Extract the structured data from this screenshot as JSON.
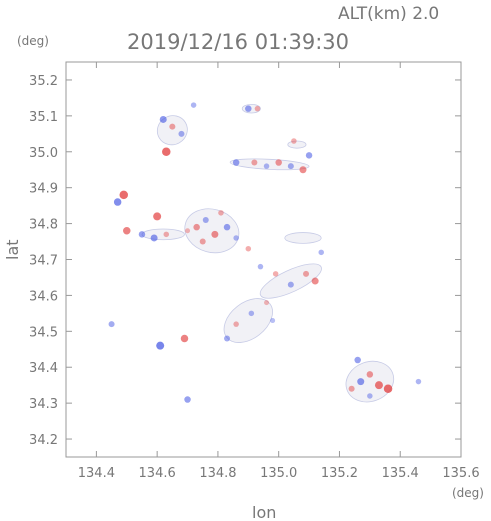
{
  "header": {
    "altitude_label": "ALT(km) 2.0",
    "timestamp": "2019/12/16 01:39:30",
    "unit_left": "(deg)",
    "unit_bottom": "(deg)"
  },
  "chart_data": {
    "type": "heatmap",
    "title": "2019/12/16 01:39:30",
    "xlabel": "lon",
    "ylabel": "lat",
    "xlim": [
      134.3,
      135.6
    ],
    "ylim": [
      34.15,
      35.25
    ],
    "x_ticks": [
      "134.4",
      "134.6",
      "134.8",
      "135.0",
      "135.2",
      "135.4",
      "135.6"
    ],
    "y_ticks": [
      "34.2",
      "34.3",
      "34.4",
      "34.5",
      "34.6",
      "34.7",
      "34.8",
      "34.9",
      "35.0",
      "35.1",
      "35.2"
    ],
    "grid": false,
    "colors": {
      "positive": "#e23b3b",
      "negative": "#3b4ee2",
      "axis": "#999999"
    },
    "cells": [
      {
        "lon": 134.73,
        "lat": 34.79,
        "v": 0.5
      },
      {
        "lon": 134.76,
        "lat": 34.81,
        "v": -0.4
      },
      {
        "lon": 134.79,
        "lat": 34.77,
        "v": 0.6
      },
      {
        "lon": 134.81,
        "lat": 34.83,
        "v": 0.3
      },
      {
        "lon": 134.83,
        "lat": 34.79,
        "v": -0.5
      },
      {
        "lon": 134.75,
        "lat": 34.75,
        "v": 0.4
      },
      {
        "lon": 134.7,
        "lat": 34.78,
        "v": 0.2
      },
      {
        "lon": 134.86,
        "lat": 34.76,
        "v": -0.3
      },
      {
        "lon": 134.55,
        "lat": 34.77,
        "v": -0.5
      },
      {
        "lon": 134.59,
        "lat": 34.76,
        "v": -0.6
      },
      {
        "lon": 134.63,
        "lat": 34.77,
        "v": 0.3
      },
      {
        "lon": 134.5,
        "lat": 34.78,
        "v": 0.7
      },
      {
        "lon": 134.6,
        "lat": 34.82,
        "v": 0.8
      },
      {
        "lon": 134.49,
        "lat": 34.88,
        "v": 0.9
      },
      {
        "lon": 134.47,
        "lat": 34.86,
        "v": -0.7
      },
      {
        "lon": 134.62,
        "lat": 35.09,
        "v": -0.6
      },
      {
        "lon": 134.65,
        "lat": 35.07,
        "v": 0.4
      },
      {
        "lon": 134.68,
        "lat": 35.05,
        "v": -0.4
      },
      {
        "lon": 134.63,
        "lat": 35.0,
        "v": 0.9
      },
      {
        "lon": 134.72,
        "lat": 35.13,
        "v": -0.3
      },
      {
        "lon": 134.9,
        "lat": 35.12,
        "v": -0.5
      },
      {
        "lon": 134.93,
        "lat": 35.12,
        "v": 0.3
      },
      {
        "lon": 134.86,
        "lat": 34.97,
        "v": -0.5
      },
      {
        "lon": 134.92,
        "lat": 34.97,
        "v": 0.4
      },
      {
        "lon": 134.96,
        "lat": 34.96,
        "v": -0.3
      },
      {
        "lon": 135.0,
        "lat": 34.97,
        "v": 0.5
      },
      {
        "lon": 135.04,
        "lat": 34.96,
        "v": -0.4
      },
      {
        "lon": 135.08,
        "lat": 34.95,
        "v": 0.6
      },
      {
        "lon": 135.1,
        "lat": 34.99,
        "v": -0.5
      },
      {
        "lon": 135.05,
        "lat": 35.03,
        "v": 0.3
      },
      {
        "lon": 134.94,
        "lat": 34.68,
        "v": -0.3
      },
      {
        "lon": 134.99,
        "lat": 34.66,
        "v": 0.3
      },
      {
        "lon": 135.04,
        "lat": 34.63,
        "v": -0.4
      },
      {
        "lon": 135.09,
        "lat": 34.66,
        "v": 0.4
      },
      {
        "lon": 135.14,
        "lat": 34.72,
        "v": -0.3
      },
      {
        "lon": 135.12,
        "lat": 34.64,
        "v": 0.6
      },
      {
        "lon": 134.9,
        "lat": 34.73,
        "v": 0.3
      },
      {
        "lon": 134.86,
        "lat": 34.52,
        "v": 0.3
      },
      {
        "lon": 134.91,
        "lat": 34.55,
        "v": -0.3
      },
      {
        "lon": 134.96,
        "lat": 34.58,
        "v": 0.2
      },
      {
        "lon": 134.83,
        "lat": 34.48,
        "v": -0.4
      },
      {
        "lon": 134.98,
        "lat": 34.53,
        "v": -0.2
      },
      {
        "lon": 135.27,
        "lat": 34.36,
        "v": -0.6
      },
      {
        "lon": 135.3,
        "lat": 34.38,
        "v": 0.5
      },
      {
        "lon": 135.33,
        "lat": 34.35,
        "v": 0.8
      },
      {
        "lon": 135.3,
        "lat": 34.32,
        "v": -0.3
      },
      {
        "lon": 135.24,
        "lat": 34.34,
        "v": 0.4
      },
      {
        "lon": 135.36,
        "lat": 34.34,
        "v": 0.9
      },
      {
        "lon": 135.26,
        "lat": 34.42,
        "v": -0.5
      },
      {
        "lon": 134.45,
        "lat": 34.52,
        "v": -0.4
      },
      {
        "lon": 134.69,
        "lat": 34.48,
        "v": 0.7
      },
      {
        "lon": 134.61,
        "lat": 34.46,
        "v": -0.8
      },
      {
        "lon": 134.7,
        "lat": 34.31,
        "v": -0.5
      },
      {
        "lon": 135.46,
        "lat": 34.36,
        "v": -0.3
      }
    ]
  }
}
